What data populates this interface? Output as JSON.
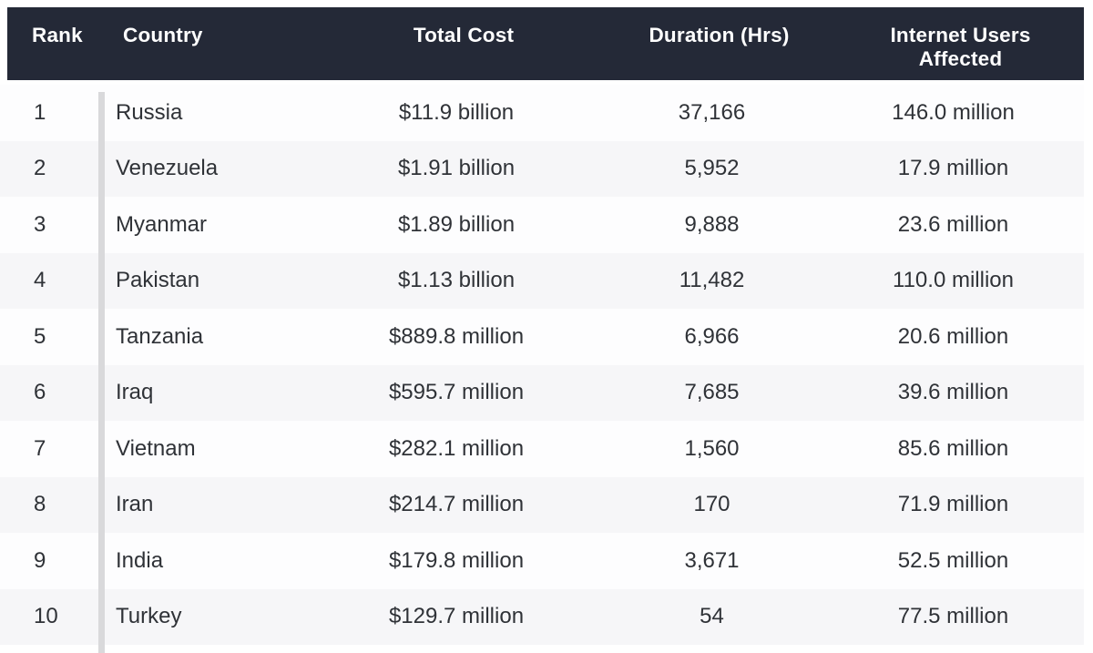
{
  "colors": {
    "header_bg": "#242937",
    "header_text": "#ffffff",
    "row_bg": "#fdfdfe",
    "row_alt_bg": "#f6f6f8",
    "row_text": "#2f3237",
    "divider": "#d9d9db"
  },
  "table": {
    "columns": [
      {
        "key": "rank",
        "label": "Rank"
      },
      {
        "key": "country",
        "label": "Country"
      },
      {
        "key": "total_cost",
        "label": "Total Cost"
      },
      {
        "key": "duration_hrs",
        "label": "Duration (Hrs)"
      },
      {
        "key": "users_affected",
        "label": "Internet Users Affected"
      }
    ],
    "rows": [
      {
        "rank": "1",
        "country": "Russia",
        "total_cost": "$11.9 billion",
        "duration_hrs": "37,166",
        "users_affected": "146.0 million"
      },
      {
        "rank": "2",
        "country": "Venezuela",
        "total_cost": "$1.91 billion",
        "duration_hrs": "5,952",
        "users_affected": "17.9 million"
      },
      {
        "rank": "3",
        "country": "Myanmar",
        "total_cost": "$1.89 billion",
        "duration_hrs": "9,888",
        "users_affected": "23.6 million"
      },
      {
        "rank": "4",
        "country": "Pakistan",
        "total_cost": "$1.13 billion",
        "duration_hrs": "11,482",
        "users_affected": "110.0 million"
      },
      {
        "rank": "5",
        "country": "Tanzania",
        "total_cost": "$889.8 million",
        "duration_hrs": "6,966",
        "users_affected": "20.6 million"
      },
      {
        "rank": "6",
        "country": "Iraq",
        "total_cost": "$595.7 million",
        "duration_hrs": "7,685",
        "users_affected": "39.6 million"
      },
      {
        "rank": "7",
        "country": "Vietnam",
        "total_cost": "$282.1 million",
        "duration_hrs": "1,560",
        "users_affected": "85.6 million"
      },
      {
        "rank": "8",
        "country": "Iran",
        "total_cost": "$214.7 million",
        "duration_hrs": "170",
        "users_affected": "71.9 million"
      },
      {
        "rank": "9",
        "country": "India",
        "total_cost": "$179.8 million",
        "duration_hrs": "3,671",
        "users_affected": "52.5 million"
      },
      {
        "rank": "10",
        "country": "Turkey",
        "total_cost": "$129.7 million",
        "duration_hrs": "54",
        "users_affected": "77.5 million"
      }
    ]
  },
  "chart_data": {
    "type": "table",
    "columns": [
      "Rank",
      "Country",
      "Total Cost",
      "Duration (Hrs)",
      "Internet Users Affected"
    ],
    "rows": [
      [
        "1",
        "Russia",
        "$11.9 billion",
        "37,166",
        "146.0 million"
      ],
      [
        "2",
        "Venezuela",
        "$1.91 billion",
        "5,952",
        "17.9 million"
      ],
      [
        "3",
        "Myanmar",
        "$1.89 billion",
        "9,888",
        "23.6 million"
      ],
      [
        "4",
        "Pakistan",
        "$1.13 billion",
        "11,482",
        "110.0 million"
      ],
      [
        "5",
        "Tanzania",
        "$889.8 million",
        "6,966",
        "20.6 million"
      ],
      [
        "6",
        "Iraq",
        "$595.7 million",
        "7,685",
        "39.6 million"
      ],
      [
        "7",
        "Vietnam",
        "$282.1 million",
        "1,560",
        "85.6 million"
      ],
      [
        "8",
        "Iran",
        "$214.7 million",
        "170",
        "71.9 million"
      ],
      [
        "9",
        "India",
        "$179.8 million",
        "3,671",
        "52.5 million"
      ],
      [
        "10",
        "Turkey",
        "$129.7 million",
        "54",
        "77.5 million"
      ]
    ],
    "numeric": {
      "total_cost_usd_millions": [
        11900,
        1910,
        1890,
        1130,
        889.8,
        595.7,
        282.1,
        214.7,
        179.8,
        129.7
      ],
      "duration_hrs": [
        37166,
        5952,
        9888,
        11482,
        6966,
        7685,
        1560,
        170,
        3671,
        54
      ],
      "internet_users_affected_millions": [
        146.0,
        17.9,
        23.6,
        110.0,
        20.6,
        39.6,
        85.6,
        71.9,
        52.5,
        77.5
      ]
    }
  }
}
